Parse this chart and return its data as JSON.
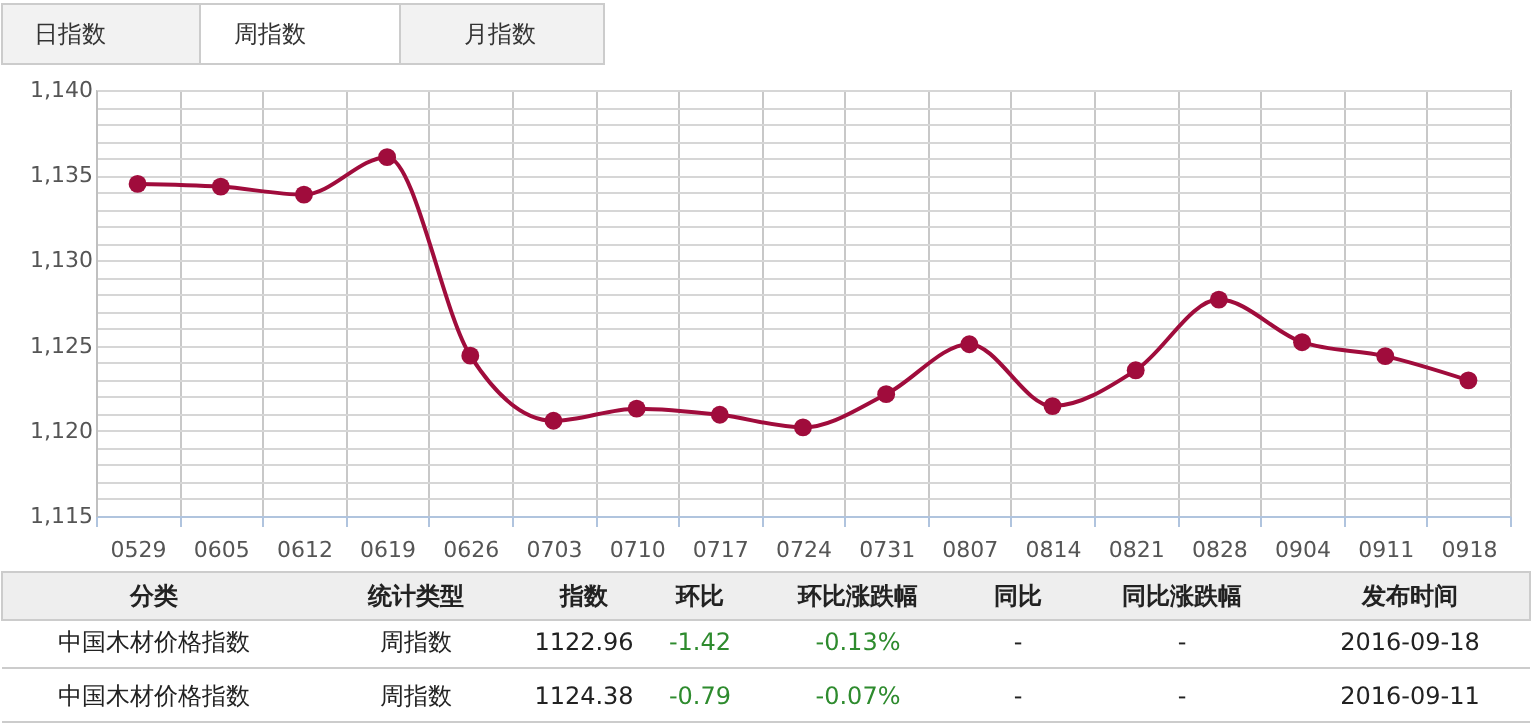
{
  "chart_data": {
    "type": "line",
    "categories": [
      "0529",
      "0605",
      "0612",
      "0619",
      "0626",
      "0703",
      "0710",
      "0717",
      "0724",
      "0731",
      "0807",
      "0814",
      "0821",
      "0828",
      "0904",
      "0911",
      "0918"
    ],
    "series": [
      {
        "color": "#a00c3c",
        "values": [
          1134.49,
          1134.33,
          1133.86,
          1136.06,
          1124.41,
          1120.59,
          1121.3,
          1120.94,
          1120.2,
          1122.15,
          1125.08,
          1121.45,
          1123.55,
          1127.7,
          1125.2,
          1124.38,
          1122.96
        ]
      }
    ],
    "ylim": [
      1115,
      1140
    ],
    "yticks": [
      {
        "value": 1115,
        "label": "1,115"
      },
      {
        "value": 1116,
        "label": null
      },
      {
        "value": 1117,
        "label": null
      },
      {
        "value": 1118,
        "label": null
      },
      {
        "value": 1119,
        "label": null
      },
      {
        "value": 1120,
        "label": "1,120"
      },
      {
        "value": 1121,
        "label": null
      },
      {
        "value": 1122,
        "label": null
      },
      {
        "value": 1123,
        "label": null
      },
      {
        "value": 1124,
        "label": null
      },
      {
        "value": 1125,
        "label": "1,125"
      },
      {
        "value": 1126,
        "label": null
      },
      {
        "value": 1127,
        "label": null
      },
      {
        "value": 1128,
        "label": null
      },
      {
        "value": 1129,
        "label": null
      },
      {
        "value": 1130,
        "label": "1,130"
      },
      {
        "value": 1131,
        "label": null
      },
      {
        "value": 1132,
        "label": null
      },
      {
        "value": 1133,
        "label": null
      },
      {
        "value": 1134,
        "label": null
      },
      {
        "value": 1135,
        "label": "1,135"
      },
      {
        "value": 1136,
        "label": null
      },
      {
        "value": 1137,
        "label": null
      },
      {
        "value": 1138,
        "label": null
      },
      {
        "value": 1139,
        "label": null
      },
      {
        "value": 1140,
        "label": "1,140"
      }
    ],
    "grid": true,
    "legend": false,
    "marker": "circle",
    "line_style": "solid",
    "annotations": [
      "日指数",
      "周指数",
      "月指数",
      "分类",
      "统计类型",
      "指数",
      "环比",
      "环比涨跌幅",
      "同比",
      "同比涨跌幅",
      "发布时间",
      "中国木材价格指数",
      "周指数",
      "1122.96",
      "-1.42",
      "-0.13%",
      "-",
      "-",
      "2016-09-18",
      "中国木材价格指数",
      "周指数",
      "1124.38",
      "-0.79",
      "-0.07%",
      "-",
      "-",
      "2016-09-11"
    ]
  }
}
